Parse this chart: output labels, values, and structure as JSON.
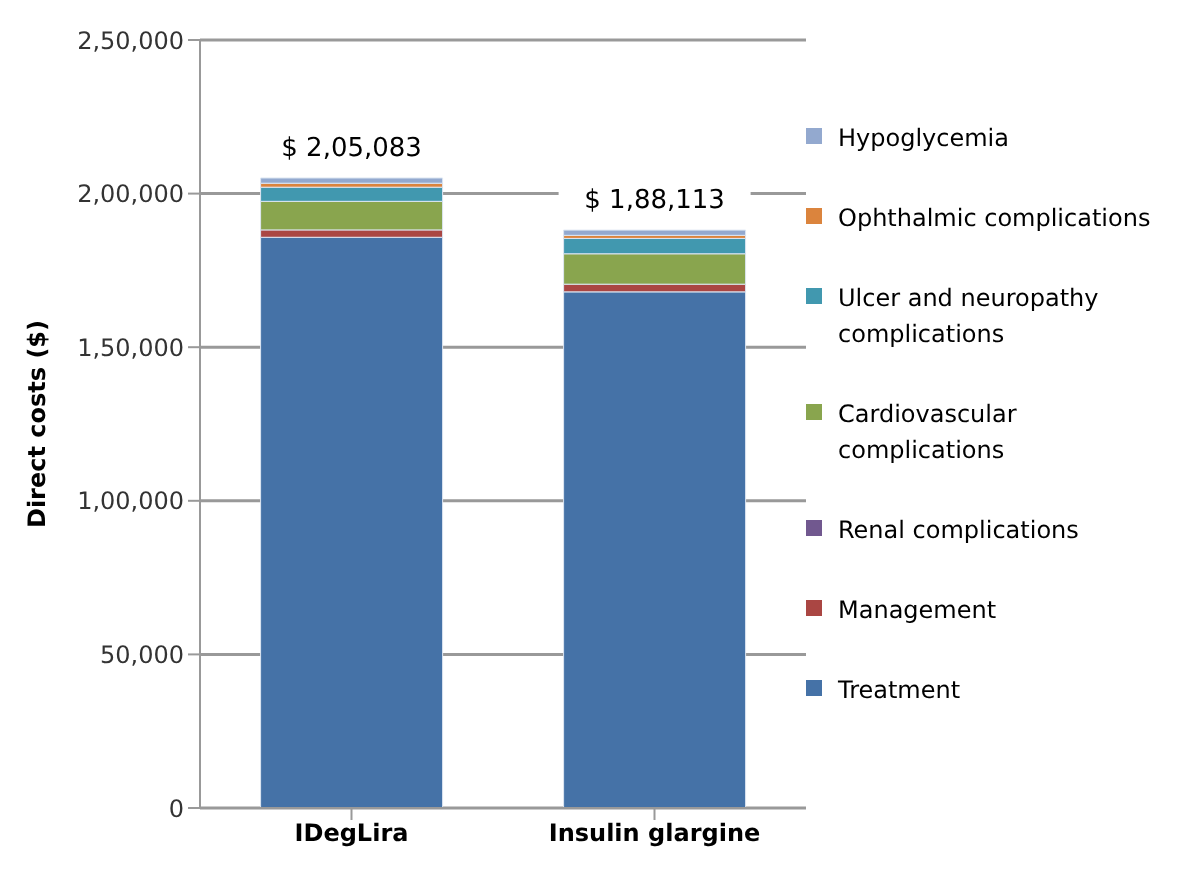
{
  "chart_data": {
    "type": "bar",
    "stacked": true,
    "ylabel": "Direct costs ($)",
    "categories": [
      "IDegLira",
      "Insulin glargine"
    ],
    "series": [
      {
        "name": "Treatment",
        "color": "#4572a7",
        "values": [
          185783,
          168013
        ]
      },
      {
        "name": "Management",
        "color": "#aa4643",
        "values": [
          2400,
          2500
        ]
      },
      {
        "name": "Renal complications",
        "color": "#71588f",
        "values": [
          null,
          null
        ]
      },
      {
        "name": "Cardiovascular complications",
        "color": "#89a54e",
        "values": [
          9300,
          9900
        ]
      },
      {
        "name": "Ulcer and neuropathy complications",
        "color": "#4198af",
        "values": [
          4600,
          5000
        ]
      },
      {
        "name": "Ophthalmic complications",
        "color": "#db843d",
        "values": [
          1300,
          1000
        ]
      },
      {
        "name": "Hypoglycemia",
        "color": "#93a9cf",
        "values": [
          1700,
          1700
        ]
      }
    ],
    "totals": [
      "$ 2,05,083",
      "$ 1,88,113"
    ],
    "ylim": [
      0,
      250000
    ],
    "yticks": [
      0,
      {
        "value": 50000,
        "label": "50,000"
      },
      {
        "value": 100000,
        "label": "1,00,000"
      },
      {
        "value": 150000,
        "label": "1,50,000"
      },
      {
        "value": 200000,
        "label": "2,00,000"
      },
      {
        "value": 250000,
        "label": "2,50,000"
      }
    ],
    "grid": "y",
    "legend": "right"
  }
}
